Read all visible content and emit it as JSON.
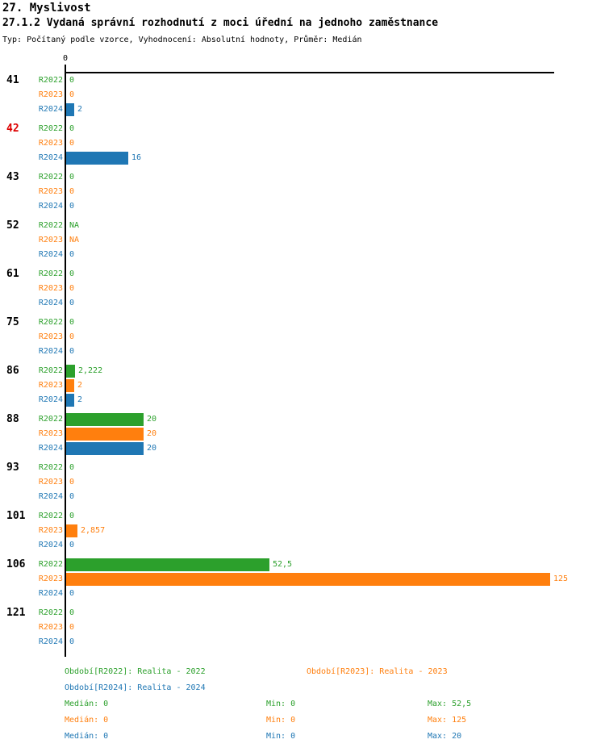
{
  "chart_data": {
    "type": "bar",
    "orientation": "horizontal",
    "title": "27. Myslivost",
    "subtitle": "27.1.2 Vydaná správní rozhodnutí z moci úřední na jednoho zaměstnance",
    "note": "Typ: Počítaný podle vzorce, Vyhodnocení: Absolutní hodnoty, Průměr: Medián",
    "zero_tick_label": "0",
    "xlim": [
      0,
      125
    ],
    "grid": false,
    "highlight_category": "42",
    "highlight_color": "#dd0000",
    "category_color": "#000000",
    "categories": [
      "41",
      "42",
      "43",
      "52",
      "61",
      "75",
      "86",
      "88",
      "93",
      "101",
      "106",
      "121"
    ],
    "series": [
      {
        "name": "R2022",
        "color": "#2ca02c",
        "legend": "Období[R2022]: Realita - 2022",
        "stats": {
          "median": "Medián: 0",
          "min": "Min: 0",
          "max": "Max: 52,5"
        }
      },
      {
        "name": "R2023",
        "color": "#ff7f0e",
        "legend": "Období[R2023]: Realita - 2023",
        "stats": {
          "median": "Medián: 0",
          "min": "Min: 0",
          "max": "Max: 125"
        }
      },
      {
        "name": "R2024",
        "color": "#1f77b4",
        "legend": "Období[R2024]: Realita - 2024",
        "stats": {
          "median": "Medián: 0",
          "min": "Min: 0",
          "max": "Max: 20"
        }
      }
    ],
    "groups": [
      {
        "id": "41",
        "values": [
          {
            "s": "R2022",
            "v": 0,
            "d": "0"
          },
          {
            "s": "R2023",
            "v": 0,
            "d": "0"
          },
          {
            "s": "R2024",
            "v": 2,
            "d": "2"
          }
        ]
      },
      {
        "id": "42",
        "values": [
          {
            "s": "R2022",
            "v": 0,
            "d": "0"
          },
          {
            "s": "R2023",
            "v": 0,
            "d": "0"
          },
          {
            "s": "R2024",
            "v": 16,
            "d": "16"
          }
        ]
      },
      {
        "id": "43",
        "values": [
          {
            "s": "R2022",
            "v": 0,
            "d": "0"
          },
          {
            "s": "R2023",
            "v": 0,
            "d": "0"
          },
          {
            "s": "R2024",
            "v": 0,
            "d": "0"
          }
        ]
      },
      {
        "id": "52",
        "values": [
          {
            "s": "R2022",
            "v": null,
            "d": "NA"
          },
          {
            "s": "R2023",
            "v": null,
            "d": "NA"
          },
          {
            "s": "R2024",
            "v": 0,
            "d": "0"
          }
        ]
      },
      {
        "id": "61",
        "values": [
          {
            "s": "R2022",
            "v": 0,
            "d": "0"
          },
          {
            "s": "R2023",
            "v": 0,
            "d": "0"
          },
          {
            "s": "R2024",
            "v": 0,
            "d": "0"
          }
        ]
      },
      {
        "id": "75",
        "values": [
          {
            "s": "R2022",
            "v": 0,
            "d": "0"
          },
          {
            "s": "R2023",
            "v": 0,
            "d": "0"
          },
          {
            "s": "R2024",
            "v": 0,
            "d": "0"
          }
        ]
      },
      {
        "id": "86",
        "values": [
          {
            "s": "R2022",
            "v": 2.222,
            "d": "2,222"
          },
          {
            "s": "R2023",
            "v": 2,
            "d": "2"
          },
          {
            "s": "R2024",
            "v": 2,
            "d": "2"
          }
        ]
      },
      {
        "id": "88",
        "values": [
          {
            "s": "R2022",
            "v": 20,
            "d": "20"
          },
          {
            "s": "R2023",
            "v": 20,
            "d": "20"
          },
          {
            "s": "R2024",
            "v": 20,
            "d": "20"
          }
        ]
      },
      {
        "id": "93",
        "values": [
          {
            "s": "R2022",
            "v": 0,
            "d": "0"
          },
          {
            "s": "R2023",
            "v": 0,
            "d": "0"
          },
          {
            "s": "R2024",
            "v": 0,
            "d": "0"
          }
        ]
      },
      {
        "id": "101",
        "values": [
          {
            "s": "R2022",
            "v": 0,
            "d": "0"
          },
          {
            "s": "R2023",
            "v": 2.857,
            "d": "2,857"
          },
          {
            "s": "R2024",
            "v": 0,
            "d": "0"
          }
        ]
      },
      {
        "id": "106",
        "values": [
          {
            "s": "R2022",
            "v": 52.5,
            "d": "52,5"
          },
          {
            "s": "R2023",
            "v": 125,
            "d": "125"
          },
          {
            "s": "R2024",
            "v": 0,
            "d": "0"
          }
        ]
      },
      {
        "id": "121",
        "values": [
          {
            "s": "R2022",
            "v": 0,
            "d": "0"
          },
          {
            "s": "R2023",
            "v": 0,
            "d": "0"
          },
          {
            "s": "R2024",
            "v": 0,
            "d": "0"
          }
        ]
      }
    ]
  }
}
